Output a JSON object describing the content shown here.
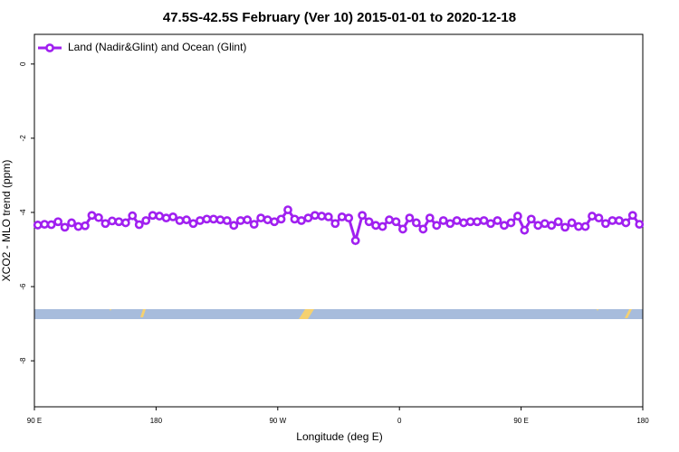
{
  "chart_data": {
    "type": "line",
    "title": "47.5S-42.5S February (Ver 10)   2015-01-01 to 2020-12-18",
    "xlabel": "Longitude (deg E)",
    "ylabel": "XCO2 - MLO trend (ppm)",
    "xlim": [
      90,
      540
    ],
    "ylim": [
      -9.24,
      0.8
    ],
    "xticks": [
      {
        "value": 90,
        "label": "90 E"
      },
      180,
      {
        "value": 270,
        "label": "90 W"
      },
      {
        "value": 360,
        "label": "0"
      },
      {
        "value": 450,
        "label": "90 E"
      },
      {
        "value": 540,
        "label": "180"
      }
    ],
    "yticks": [
      0,
      -2,
      -4,
      -6,
      -8
    ],
    "legend": "upper left",
    "x": [
      92.5,
      97.5,
      102.5,
      107.5,
      112.5,
      117.5,
      122.5,
      127.5,
      132.5,
      137.5,
      142.5,
      147.5,
      152.5,
      157.5,
      162.5,
      167.5,
      172.5,
      177.5,
      182.5,
      187.5,
      192.5,
      197.5,
      202.5,
      207.5,
      212.5,
      217.5,
      222.5,
      227.5,
      232.5,
      237.5,
      242.5,
      247.5,
      252.5,
      257.5,
      262.5,
      267.5,
      272.5,
      277.5,
      282.5,
      287.5,
      292.5,
      297.5,
      302.5,
      307.5,
      312.5,
      317.5,
      322.5,
      327.5,
      332.5,
      337.5,
      342.5,
      347.5,
      352.5,
      357.5,
      362.5,
      367.5,
      372.5,
      377.5,
      382.5,
      387.5,
      392.5,
      397.5,
      402.5,
      407.5,
      412.5,
      417.5,
      422.5,
      427.5,
      432.5,
      437.5,
      442.5,
      447.5,
      452.5,
      457.5,
      462.5,
      467.5,
      472.5,
      477.5,
      482.5,
      487.5,
      492.5,
      497.5,
      502.5,
      507.5,
      512.5,
      517.5,
      522.5,
      527.5,
      532.5,
      537.5
    ],
    "series": [
      {
        "name": "Land (Nadir&Glint) and Ocean (Glint)",
        "color": "#a020f0",
        "values": [
          -4.34,
          -4.32,
          -4.33,
          -4.25,
          -4.4,
          -4.28,
          -4.38,
          -4.36,
          -4.08,
          -4.14,
          -4.3,
          -4.23,
          -4.25,
          -4.28,
          -4.09,
          -4.33,
          -4.22,
          -4.08,
          -4.1,
          -4.15,
          -4.12,
          -4.22,
          -4.2,
          -4.3,
          -4.22,
          -4.18,
          -4.18,
          -4.2,
          -4.22,
          -4.35,
          -4.22,
          -4.2,
          -4.32,
          -4.15,
          -4.2,
          -4.25,
          -4.18,
          -3.93,
          -4.18,
          -4.22,
          -4.15,
          -4.08,
          -4.1,
          -4.12,
          -4.3,
          -4.12,
          -4.15,
          -4.76,
          -4.08,
          -4.25,
          -4.35,
          -4.38,
          -4.2,
          -4.25,
          -4.45,
          -4.15,
          -4.28,
          -4.45,
          -4.15,
          -4.35,
          -4.22,
          -4.3,
          -4.22,
          -4.28,
          -4.25,
          -4.25,
          -4.22,
          -4.3,
          -4.22,
          -4.35,
          -4.28,
          -4.1,
          -4.48,
          -4.18,
          -4.35,
          -4.3,
          -4.35,
          -4.25,
          -4.4,
          -4.28,
          -4.38,
          -4.38,
          -4.1,
          -4.15,
          -4.3,
          -4.22,
          -4.22,
          -4.28,
          -4.08,
          -4.32
        ]
      }
    ]
  }
}
